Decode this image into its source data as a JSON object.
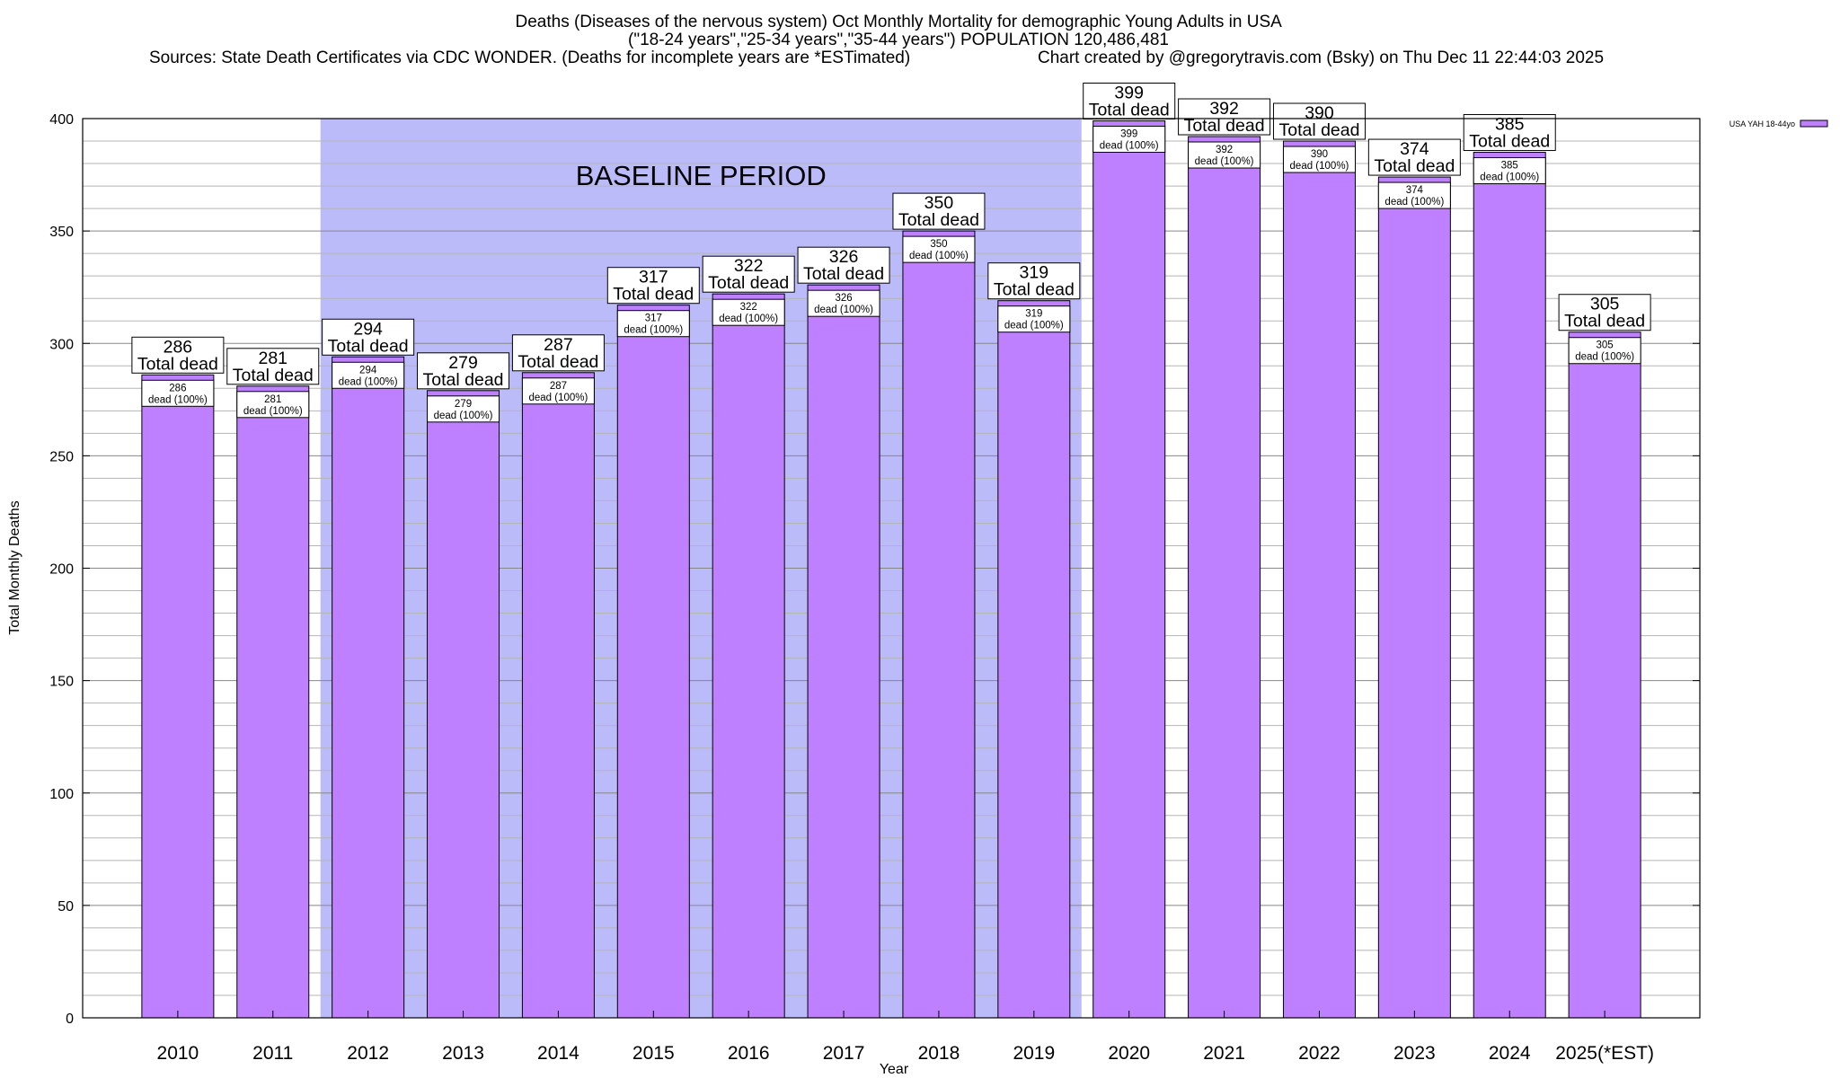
{
  "title": {
    "line1": "Deaths (Diseases of the nervous system) Oct Monthly Mortality for demographic Young Adults in USA",
    "line2": "(\"18-24 years\",\"25-34 years\",\"35-44 years\") POPULATION 120,486,481",
    "line3_left": "Sources: State Death Certificates via CDC WONDER. (Deaths for incomplete years are *ESTimated)",
    "line3_right": "Chart created by @gregorytravis.com (Bsky) on Thu Dec 11 22:44:03 2025"
  },
  "chart_data": {
    "type": "bar",
    "title": "Deaths (Diseases of the nervous system) Oct Monthly Mortality for demographic Young Adults in USA",
    "xlabel": "Year",
    "ylabel": "Total Monthly Deaths",
    "ylim": [
      0,
      400
    ],
    "yticks": [
      0,
      50,
      100,
      150,
      200,
      250,
      300,
      350,
      400
    ],
    "grid": true,
    "categories": [
      "2010",
      "2011",
      "2012",
      "2013",
      "2014",
      "2015",
      "2016",
      "2017",
      "2018",
      "2019",
      "2020",
      "2021",
      "2022",
      "2023",
      "2024",
      "2025(*EST)"
    ],
    "series": [
      {
        "name": "USA YAH 18-44yo",
        "color": "#bf80ff",
        "values": [
          286,
          281,
          294,
          279,
          287,
          317,
          322,
          326,
          350,
          319,
          399,
          392,
          390,
          374,
          385,
          305
        ]
      }
    ],
    "bar_labels": {
      "total_text": "Total dead",
      "inner_text": "dead (100%)"
    },
    "legend": {
      "entry": "USA YAH 18-44yo",
      "placement": "top-right"
    },
    "baseline_period": {
      "label": "BASELINE PERIOD",
      "from": "2012",
      "to": "2019",
      "color": "#bbbbfa"
    }
  }
}
